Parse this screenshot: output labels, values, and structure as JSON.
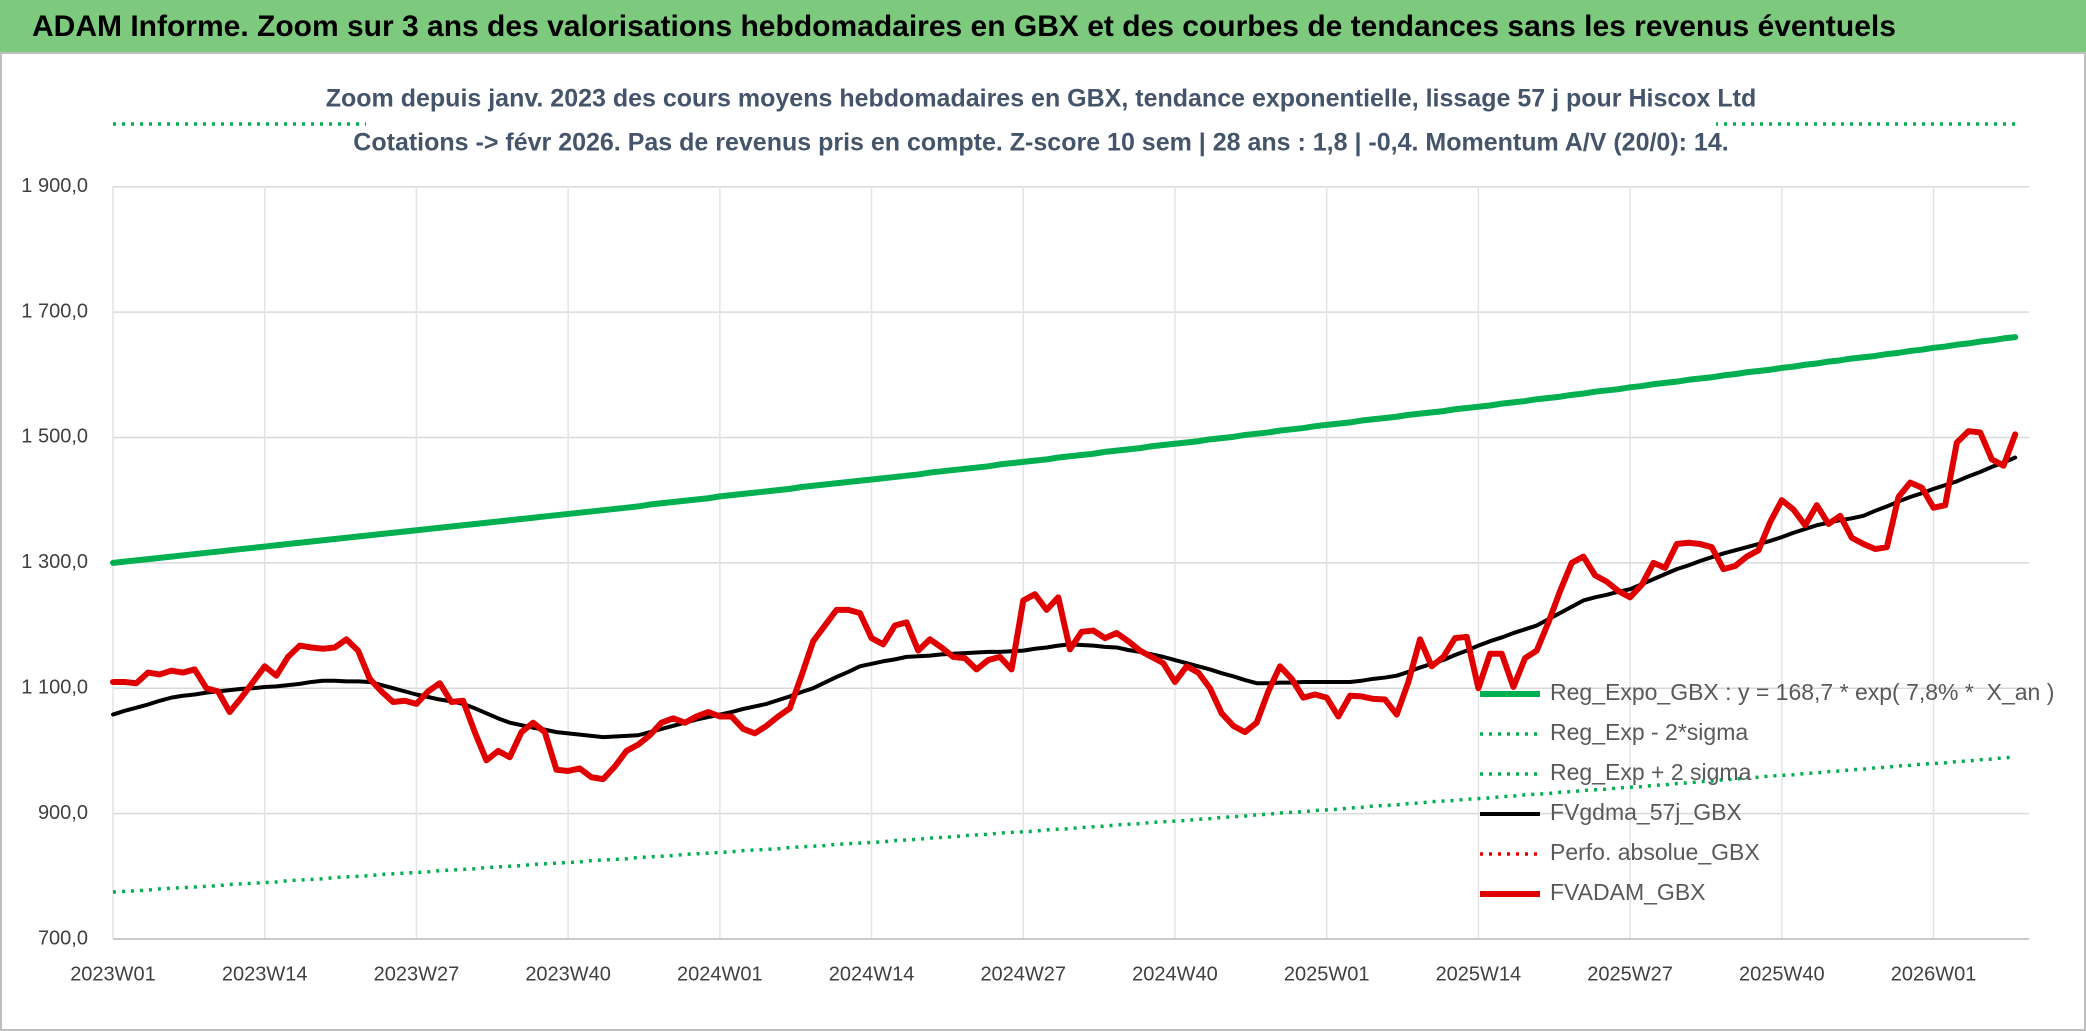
{
  "chart_data": {
    "type": "line",
    "title": "ADAM Informe. Zoom sur 3 ans des valorisations hebdomadaires en GBX et des courbes de tendances sans les revenus éventuels",
    "subtitle": [
      "Zoom depuis janv. 2023 des cours moyens hebdomadaires en GBX, tendance exponentielle, lissage 57 j pour Hiscox Ltd",
      "Cotations -> févr 2026. Pas de revenus pris en compte. Z-score 10 sem | 28 ans : 1,8 | -0,4. Momentum A/V (20/0): 14."
    ],
    "grid": true,
    "ylim": [
      700,
      2000
    ],
    "yticks": [
      {
        "value": 700,
        "label": "700,0"
      },
      {
        "value": 900,
        "label": "900,0"
      },
      {
        "value": 1100,
        "label": "1 100,0"
      },
      {
        "value": 1300,
        "label": "1 300,0"
      },
      {
        "value": 1500,
        "label": "1 500,0"
      },
      {
        "value": 1700,
        "label": "1 700,0"
      },
      {
        "value": 1900,
        "label": "1 900,0"
      }
    ],
    "categories": [
      "2023W01",
      null,
      null,
      null,
      null,
      null,
      null,
      null,
      null,
      null,
      null,
      null,
      null,
      "2023W14",
      null,
      null,
      null,
      null,
      null,
      null,
      null,
      null,
      null,
      null,
      null,
      null,
      "2023W27",
      null,
      null,
      null,
      null,
      null,
      null,
      null,
      null,
      null,
      null,
      null,
      null,
      "2023W40",
      null,
      null,
      null,
      null,
      null,
      null,
      null,
      null,
      null,
      null,
      null,
      null,
      "2024W01",
      null,
      null,
      null,
      null,
      null,
      null,
      null,
      null,
      null,
      null,
      null,
      null,
      "2024W14",
      null,
      null,
      null,
      null,
      null,
      null,
      null,
      null,
      null,
      null,
      null,
      null,
      "2024W27",
      null,
      null,
      null,
      null,
      null,
      null,
      null,
      null,
      null,
      null,
      null,
      null,
      "2024W40",
      null,
      null,
      null,
      null,
      null,
      null,
      null,
      null,
      null,
      null,
      null,
      null,
      "2025W01",
      null,
      null,
      null,
      null,
      null,
      null,
      null,
      null,
      null,
      null,
      null,
      null,
      "2025W14",
      null,
      null,
      null,
      null,
      null,
      null,
      null,
      null,
      null,
      null,
      null,
      null,
      "2025W27",
      null,
      null,
      null,
      null,
      null,
      null,
      null,
      null,
      null,
      null,
      null,
      null,
      "2025W40",
      null,
      null,
      null,
      null,
      null,
      null,
      null,
      null,
      null,
      null,
      null,
      null,
      "2026W01",
      null,
      null,
      null,
      null,
      null,
      null,
      null
    ],
    "series": [
      {
        "name": "Reg_Expo_GBX : y = 168,7 * exp( 7,8% *  X_an )",
        "color": "#00b050",
        "line_style": "thick",
        "values": [
          1300,
          1302,
          1304,
          1306,
          1308,
          1310,
          1312,
          1314,
          1316,
          1318,
          1320,
          1322,
          1324,
          1326,
          1328,
          1330,
          1332,
          1334,
          1336,
          1338,
          1340,
          1342,
          1344,
          1346,
          1348,
          1350,
          1352,
          1354,
          1356,
          1358,
          1360,
          1362,
          1364,
          1366,
          1368,
          1370,
          1372,
          1374,
          1376,
          1378,
          1380,
          1382,
          1384,
          1386,
          1388,
          1390,
          1393,
          1395,
          1397,
          1399,
          1401,
          1403,
          1406,
          1408,
          1410,
          1412,
          1414,
          1416,
          1418,
          1421,
          1423,
          1425,
          1427,
          1429,
          1431,
          1433,
          1435,
          1437,
          1439,
          1441,
          1444,
          1446,
          1448,
          1450,
          1452,
          1454,
          1457,
          1459,
          1461,
          1463,
          1465,
          1468,
          1470,
          1472,
          1474,
          1477,
          1479,
          1481,
          1483,
          1486,
          1488,
          1490,
          1492,
          1494,
          1497,
          1499,
          1501,
          1504,
          1506,
          1508,
          1511,
          1513,
          1515,
          1518,
          1520,
          1522,
          1524,
          1527,
          1529,
          1531,
          1533,
          1536,
          1538,
          1540,
          1542,
          1545,
          1547,
          1549,
          1551,
          1554,
          1556,
          1558,
          1561,
          1563,
          1565,
          1568,
          1570,
          1573,
          1575,
          1577,
          1580,
          1582,
          1585,
          1587,
          1589,
          1592,
          1594,
          1596,
          1599,
          1601,
          1604,
          1606,
          1608,
          1611,
          1613,
          1616,
          1618,
          1621,
          1623,
          1626,
          1628,
          1630,
          1633,
          1635,
          1638,
          1640,
          1643,
          1645,
          1648,
          1650,
          1653,
          1655,
          1658,
          1660
        ]
      },
      {
        "name": "Reg_Exp - 2*sigma",
        "color": "#00b050",
        "line_style": "dotted",
        "values": [
          775,
          776,
          777,
          778,
          780,
          781,
          782,
          783,
          784,
          785,
          787,
          788,
          789,
          790,
          791,
          793,
          794,
          795,
          796,
          798,
          799,
          800,
          801,
          803,
          804,
          805,
          806,
          807,
          809,
          810,
          811,
          812,
          814,
          815,
          816,
          817,
          819,
          820,
          821,
          822,
          823,
          825,
          826,
          827,
          828,
          830,
          831,
          832,
          833,
          835,
          836,
          837,
          838,
          839,
          841,
          842,
          843,
          844,
          846,
          847,
          848,
          849,
          851,
          852,
          853,
          854,
          855,
          857,
          858,
          859,
          861,
          862,
          863,
          865,
          866,
          867,
          869,
          870,
          871,
          872,
          874,
          875,
          876,
          878,
          879,
          880,
          882,
          883,
          884,
          886,
          887,
          888,
          889,
          891,
          892,
          894,
          895,
          896,
          898,
          899,
          901,
          902,
          903,
          905,
          906,
          907,
          909,
          910,
          912,
          913,
          914,
          916,
          917,
          919,
          920,
          921,
          923,
          924,
          925,
          927,
          928,
          930,
          931,
          932,
          934,
          935,
          937,
          938,
          939,
          941,
          942,
          943,
          945,
          946,
          948,
          949,
          951,
          952,
          954,
          955,
          957,
          958,
          960,
          961,
          962,
          964,
          965,
          967,
          968,
          970,
          971,
          973,
          974,
          976,
          977,
          979,
          980,
          981,
          983,
          984,
          986,
          987,
          989,
          990
        ]
      },
      {
        "name": "Reg_Exp + 2 sigma",
        "color": "#00b050",
        "line_style": "dotted",
        "values": [
          2000,
          2000,
          2000,
          2000,
          2000,
          2000,
          2000,
          2000,
          2000,
          2000,
          2000,
          2000,
          2000,
          2000,
          2000,
          2000,
          2000,
          2000,
          2000,
          2000,
          2000,
          2000,
          2000,
          2000,
          2000,
          2000,
          2000,
          2000,
          2000,
          2000,
          2000,
          2000,
          2000,
          2000,
          2000,
          2000,
          2000,
          2000,
          2000,
          2000,
          2000,
          2000,
          2000,
          2000,
          2000,
          2000,
          2000,
          2000,
          2000,
          2000,
          2000,
          2000,
          2000,
          2000,
          2000,
          2000,
          2000,
          2000,
          2000,
          2000,
          2000,
          2000,
          2000,
          2000,
          2000,
          2000,
          2000,
          2000,
          2000,
          2000,
          2000,
          2000,
          2000,
          2000,
          2000,
          2000,
          2000,
          2000,
          2000,
          2000,
          2000,
          2000,
          2000,
          2000,
          2000,
          2000,
          2000,
          2000,
          2000,
          2000,
          2000,
          2000,
          2000,
          2000,
          2000,
          2000,
          2000,
          2000,
          2000,
          2000,
          2000,
          2000,
          2000,
          2000,
          2000,
          2000,
          2000,
          2000,
          2000,
          2000,
          2000,
          2000,
          2000,
          2000,
          2000,
          2000,
          2000,
          2000,
          2000,
          2000,
          2000,
          2000,
          2000,
          2000,
          2000,
          2000,
          2000,
          2000,
          2000,
          2000,
          2000,
          2000,
          2000,
          2000,
          2000,
          2000,
          2000,
          2000,
          2000,
          2000,
          2000,
          2000,
          2000,
          2000,
          2000,
          2000,
          2000,
          2000,
          2000,
          2000,
          2000,
          2000,
          2000,
          2000,
          2000,
          2000,
          2000,
          2000,
          2000,
          2000,
          2000,
          2000,
          2000,
          2000
        ]
      },
      {
        "name": "FVgdma_57j_GBX",
        "color": "#000000",
        "line_style": "solid",
        "values": [
          1058,
          1064,
          1069,
          1074,
          1080,
          1085,
          1088,
          1090,
          1093,
          1095,
          1097,
          1099,
          1100,
          1102,
          1103,
          1105,
          1107,
          1110,
          1112,
          1112,
          1111,
          1111,
          1110,
          1105,
          1100,
          1095,
          1090,
          1086,
          1082,
          1079,
          1075,
          1068,
          1060,
          1052,
          1045,
          1041,
          1037,
          1034,
          1030,
          1028,
          1026,
          1024,
          1022,
          1023,
          1024,
          1025,
          1030,
          1035,
          1040,
          1045,
          1050,
          1054,
          1058,
          1062,
          1067,
          1071,
          1075,
          1081,
          1087,
          1094,
          1100,
          1109,
          1118,
          1126,
          1135,
          1139,
          1143,
          1146,
          1150,
          1151,
          1152,
          1154,
          1155,
          1156,
          1157,
          1158,
          1158,
          1159,
          1160,
          1163,
          1165,
          1168,
          1170,
          1169,
          1168,
          1166,
          1165,
          1161,
          1158,
          1154,
          1150,
          1145,
          1140,
          1135,
          1130,
          1124,
          1119,
          1113,
          1108,
          1108,
          1109,
          1109,
          1110,
          1110,
          1110,
          1110,
          1110,
          1112,
          1115,
          1117,
          1120,
          1126,
          1133,
          1139,
          1145,
          1153,
          1160,
          1168,
          1175,
          1181,
          1188,
          1194,
          1200,
          1210,
          1220,
          1230,
          1240,
          1245,
          1249,
          1254,
          1258,
          1266,
          1274,
          1282,
          1290,
          1296,
          1303,
          1309,
          1315,
          1320,
          1325,
          1330,
          1335,
          1341,
          1348,
          1354,
          1360,
          1364,
          1368,
          1371,
          1375,
          1383,
          1390,
          1398,
          1405,
          1411,
          1418,
          1424,
          1430,
          1438,
          1445,
          1453,
          1460,
          1468
        ]
      },
      {
        "name": "Perfo. absolue_GBX",
        "color": "#e00000",
        "line_style": "dotted",
        "values": [
          null,
          null,
          null,
          null,
          null,
          null,
          null,
          null,
          null,
          null,
          null,
          null,
          null,
          null,
          null,
          null,
          null,
          null,
          null,
          null,
          null,
          null,
          null,
          null,
          null,
          null,
          null,
          null,
          null,
          null,
          null,
          null,
          null,
          null,
          null,
          null,
          null,
          null,
          null,
          null,
          null,
          null,
          null,
          null,
          null,
          null,
          null,
          null,
          null,
          null,
          null,
          null,
          null,
          null,
          null,
          null,
          null,
          null,
          null,
          null,
          null,
          null,
          null,
          null,
          null,
          null,
          null,
          null,
          null,
          null,
          null,
          null,
          null,
          null,
          null,
          null,
          null,
          null,
          null,
          null,
          null,
          null,
          null,
          null,
          null,
          null,
          null,
          null,
          null,
          null,
          null,
          null,
          null,
          null,
          null,
          null,
          null,
          null,
          null,
          null,
          null,
          null,
          null,
          null,
          null,
          null,
          null,
          null,
          null,
          null,
          null,
          null,
          null,
          null,
          null,
          null,
          null,
          null,
          null,
          null,
          null,
          null,
          null,
          null,
          null,
          null,
          null,
          null,
          null,
          null,
          null,
          null,
          null,
          null,
          null,
          null,
          null,
          null,
          null,
          null,
          null,
          null,
          null,
          null,
          null,
          null,
          null,
          null,
          null,
          null,
          null,
          null,
          null,
          null,
          null,
          null,
          null,
          null,
          null,
          null,
          null,
          null,
          null,
          null
        ]
      },
      {
        "name": "FVADAM_GBX",
        "color": "#e00000",
        "line_style": "thick",
        "values": [
          1110,
          1110,
          1108,
          1125,
          1122,
          1128,
          1125,
          1130,
          1100,
          1095,
          1062,
          1085,
          1110,
          1135,
          1120,
          1150,
          1168,
          1165,
          1163,
          1165,
          1178,
          1160,
          1115,
          1095,
          1078,
          1080,
          1075,
          1095,
          1108,
          1078,
          1080,
          1030,
          985,
          1000,
          990,
          1030,
          1045,
          1030,
          970,
          968,
          972,
          958,
          955,
          975,
          1000,
          1010,
          1025,
          1045,
          1052,
          1045,
          1055,
          1062,
          1055,
          1055,
          1035,
          1028,
          1040,
          1055,
          1068,
          1120,
          1175,
          1200,
          1225,
          1225,
          1220,
          1180,
          1170,
          1200,
          1205,
          1160,
          1178,
          1165,
          1150,
          1148,
          1130,
          1145,
          1150,
          1130,
          1240,
          1250,
          1225,
          1245,
          1162,
          1190,
          1192,
          1180,
          1188,
          1175,
          1160,
          1150,
          1140,
          1110,
          1135,
          1125,
          1100,
          1060,
          1040,
          1030,
          1045,
          1095,
          1135,
          1115,
          1085,
          1090,
          1085,
          1055,
          1088,
          1087,
          1083,
          1082,
          1058,
          1110,
          1178,
          1135,
          1150,
          1180,
          1182,
          1100,
          1155,
          1155,
          1102,
          1148,
          1160,
          1205,
          1255,
          1300,
          1310,
          1280,
          1270,
          1255,
          1245,
          1265,
          1300,
          1292,
          1330,
          1332,
          1330,
          1325,
          1290,
          1295,
          1310,
          1320,
          1365,
          1400,
          1385,
          1360,
          1392,
          1362,
          1375,
          1340,
          1330,
          1322,
          1325,
          1405,
          1428,
          1420,
          1388,
          1392,
          1492,
          1510,
          1508,
          1465,
          1455,
          1505
        ]
      }
    ]
  }
}
